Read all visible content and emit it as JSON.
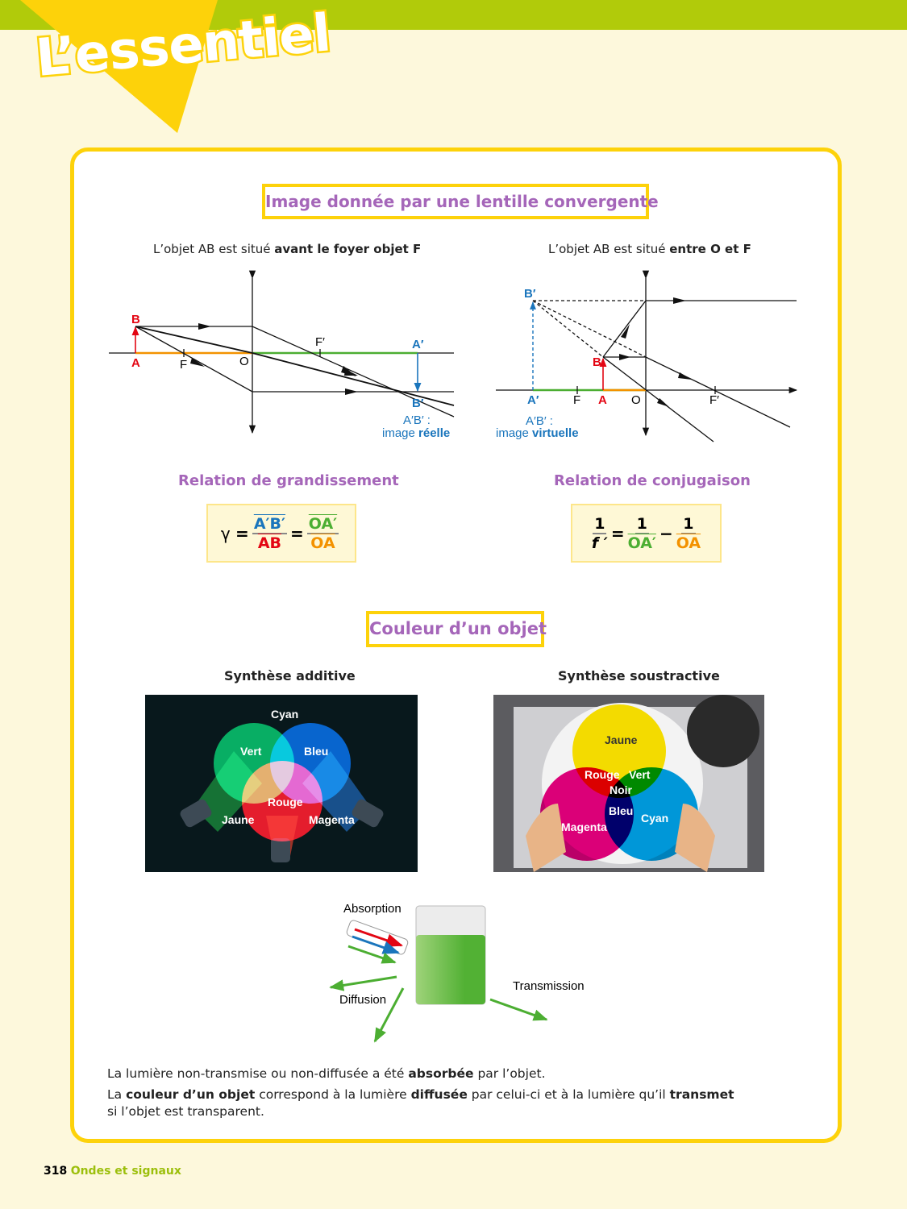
{
  "header": {
    "logo": "L’essentiel",
    "band_color": "#b1cb0a",
    "accent": "#fdd20a"
  },
  "lens": {
    "title": "Image donnée par une lentille convergente",
    "left": {
      "caption_pre": "L’objet AB est situé ",
      "caption_bold": "avant le foyer objet F",
      "labels": {
        "B": "B",
        "A": "A",
        "F": "F",
        "O": "O",
        "Fp": "F′",
        "Ap": "A′",
        "Bp": "B′",
        "image1": "A′B′ :",
        "image2_pre": "image ",
        "image2_bold": "réelle"
      }
    },
    "right": {
      "caption_pre": "L’objet AB est situé ",
      "caption_bold": "entre O et F",
      "labels": {
        "Bp": "B′",
        "B": "B",
        "Ap": "A′",
        "F": "F",
        "A": "A",
        "O": "O",
        "Fp": "F′",
        "image1": "A′B′ :",
        "image2_pre": "image ",
        "image2_bold": "virtuelle"
      }
    },
    "grandissement": {
      "title": "Relation de grandissement",
      "gamma": "γ",
      "eq": "=",
      "n1": "A′B′",
      "d1": "AB",
      "n2": "OA′",
      "d2": "OA"
    },
    "conjugaison": {
      "title": "Relation de conjugaison",
      "n1": "1",
      "d1": "f ′",
      "eq": "=",
      "n2": "1",
      "d2": "OA′",
      "minus": "−",
      "n3": "1",
      "d3": "OA"
    }
  },
  "couleur": {
    "title": "Couleur d’un objet",
    "additive": {
      "title": "Synthèse additive",
      "labels": {
        "cyan": "Cyan",
        "vert": "Vert",
        "bleu": "Bleu",
        "rouge": "Rouge",
        "jaune": "Jaune",
        "magenta": "Magenta"
      }
    },
    "soustractive": {
      "title": "Synthèse soustractive",
      "labels": {
        "jaune": "Jaune",
        "rouge": "Rouge",
        "vert": "Vert",
        "noir": "Noir",
        "bleu": "Bleu",
        "magenta": "Magenta",
        "cyan": "Cyan"
      }
    },
    "beaker": {
      "absorption": "Absorption",
      "diffusion": "Diffusion",
      "transmission": "Transmission"
    },
    "text": {
      "l1a": "La lumière non-transmise ou non-diffusée a été ",
      "l1b": "absorbée",
      "l1c": " par l’objet.",
      "l2a": "La ",
      "l2b": "couleur d’un objet",
      "l2c": " correspond à la lumière ",
      "l2d": "diffusée",
      "l2e": " par celui-ci et à la lumière qu’il ",
      "l2f": "transmet",
      "l3": "si l’objet est transparent."
    }
  },
  "footer": {
    "page": "318",
    "section": "Ondes et signaux"
  }
}
